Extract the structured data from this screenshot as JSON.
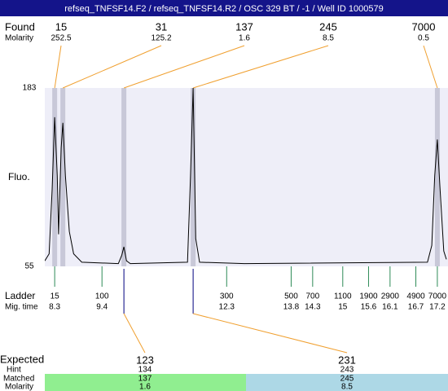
{
  "chart_data": {
    "type": "line",
    "title": "refseq_TNFSF14.F2 / refseq_TNFSF14.R2 / OSC 329 BT / -1 / Well ID 1000579",
    "y_label": "Fluo.",
    "ylim": [
      55,
      183
    ],
    "yticks": [
      55,
      183
    ],
    "xlim": [
      8.07,
      17.41
    ],
    "trace": {
      "color": "#000000",
      "x": [
        8.07,
        8.17,
        8.24,
        8.3,
        8.36,
        8.39,
        8.45,
        8.49,
        8.55,
        8.64,
        8.74,
        8.93,
        9.78,
        9.86,
        9.91,
        9.97,
        10.06,
        11.39,
        11.46,
        11.52,
        11.58,
        11.67,
        12.71,
        16.97,
        17.07,
        17.14,
        17.2,
        17.26,
        17.35,
        17.41
      ],
      "values": [
        59,
        64,
        110,
        162,
        120,
        78,
        140,
        158,
        120,
        80,
        64,
        58,
        57,
        63,
        69,
        59,
        57,
        58,
        120,
        183,
        75,
        58,
        57,
        58,
        70,
        120,
        146,
        112,
        66,
        60
      ]
    },
    "found": {
      "label": "Found",
      "molarity_label": "Molarity",
      "sizes": [
        15,
        31,
        137,
        245,
        7000
      ],
      "molarity": [
        252.5,
        125.2,
        1.6,
        8.5,
        0.5
      ],
      "x": [
        8.3,
        8.49,
        9.91,
        11.52,
        17.2
      ],
      "band_color": "#c8c8d8"
    },
    "ladder": {
      "label": "Ladder",
      "time_label": "Mig. time",
      "sizes": [
        15,
        100,
        300,
        500,
        700,
        1100,
        1900,
        2900,
        4900,
        7000
      ],
      "x": [
        8.3,
        9.4,
        12.3,
        13.8,
        14.3,
        15,
        15.6,
        16.1,
        16.7,
        17.2
      ],
      "color": "#2e8b57"
    },
    "expected": {
      "label": "Expected",
      "hint_label": "Hint",
      "matched_label": "Matched",
      "molarity_label": "Molarity",
      "sizes": [
        123,
        231
      ],
      "hint": [
        134,
        243
      ],
      "matched": [
        137,
        245
      ],
      "molarity": [
        1.6,
        8.5
      ],
      "colors": [
        "#90ee90",
        "#add8e6"
      ]
    }
  }
}
